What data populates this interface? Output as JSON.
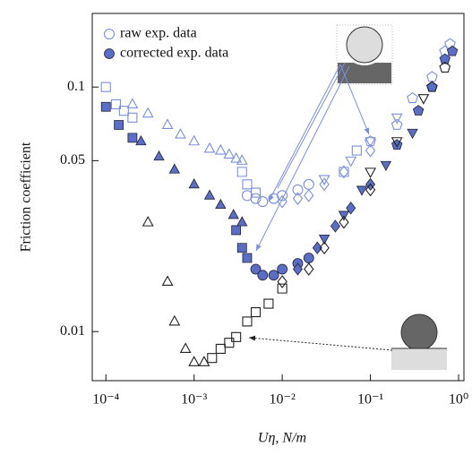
{
  "chart_data": {
    "type": "scatter",
    "x_label": "Uη, N/m",
    "y_label": "Friction coefficient",
    "log_x": true,
    "log_y": true,
    "xlim": [
      7e-05,
      1.15
    ],
    "ylim": [
      0.0063,
      0.2
    ],
    "xticks": [
      {
        "value": 0.0001,
        "label": "10⁻⁴"
      },
      {
        "value": 0.001,
        "label": "10⁻³"
      },
      {
        "value": 0.01,
        "label": "10⁻²"
      },
      {
        "value": 0.1,
        "label": "10⁻¹"
      },
      {
        "value": 1,
        "label": "10⁰"
      }
    ],
    "yticks": [
      0.01,
      0.05,
      0.1
    ],
    "legend": "upper left",
    "series": [
      {
        "name": "raw exp. data",
        "color": "#7b8fdd",
        "filled": false,
        "marker": "circle",
        "x": [
          0.004,
          0.005,
          0.006,
          0.008,
          0.01,
          0.015,
          0.02
        ],
        "values": [
          0.036,
          0.035,
          0.034,
          0.035,
          0.036,
          0.038,
          0.04
        ]
      },
      {
        "name": "corrected exp. data",
        "color": "#5a6ec8",
        "filled": true,
        "marker": "circle",
        "x": [
          0.005,
          0.006,
          0.008,
          0.01,
          0.015,
          0.02
        ],
        "values": [
          0.018,
          0.017,
          0.017,
          0.018,
          0.019,
          0.02
        ]
      },
      {
        "color": "#7b8fdd",
        "filled": false,
        "marker": "square",
        "x": [
          0.0001,
          0.00013,
          0.00016,
          0.0002,
          0.0035,
          0.004,
          0.005,
          0.05,
          0.07
        ],
        "values": [
          0.1,
          0.085,
          0.08,
          0.075,
          0.045,
          0.04,
          0.037,
          0.045,
          0.055
        ]
      },
      {
        "color": "#7b8fdd",
        "filled": false,
        "marker": "triangle",
        "x": [
          0.0002,
          0.0003,
          0.0005,
          0.0007,
          0.001,
          0.0015,
          0.002,
          0.0025,
          0.003,
          0.0035
        ],
        "values": [
          0.085,
          0.078,
          0.07,
          0.064,
          0.06,
          0.056,
          0.055,
          0.053,
          0.051,
          0.05
        ]
      },
      {
        "color": "#7b8fdd",
        "filled": false,
        "marker": "diamond",
        "x": [
          0.01,
          0.015,
          0.02,
          0.03,
          0.05,
          0.1
        ],
        "values": [
          0.034,
          0.035,
          0.036,
          0.04,
          0.045,
          0.055
        ]
      },
      {
        "color": "#7b8fdd",
        "filled": false,
        "marker": "triangle-down",
        "x": [
          0.03,
          0.06,
          0.1,
          0.2
        ],
        "values": [
          0.042,
          0.05,
          0.06,
          0.075
        ]
      },
      {
        "color": "#7b8fdd",
        "filled": false,
        "marker": "pentagon",
        "x": [
          0.1,
          0.2,
          0.3,
          0.5,
          0.7,
          0.8
        ],
        "values": [
          0.06,
          0.07,
          0.09,
          0.11,
          0.14,
          0.15
        ]
      },
      {
        "color": "#5a6ec8",
        "filled": true,
        "marker": "square",
        "x": [
          0.0001,
          0.00014,
          0.0002,
          0.003,
          0.0035,
          0.004
        ],
        "values": [
          0.083,
          0.07,
          0.062,
          0.026,
          0.022,
          0.02
        ]
      },
      {
        "color": "#5a6ec8",
        "filled": true,
        "marker": "triangle",
        "x": [
          0.00025,
          0.0004,
          0.0006,
          0.001,
          0.0015,
          0.002,
          0.0028,
          0.0035
        ],
        "values": [
          0.06,
          0.052,
          0.046,
          0.04,
          0.036,
          0.033,
          0.03,
          0.028
        ]
      },
      {
        "color": "#5a6ec8",
        "filled": true,
        "marker": "diamond",
        "x": [
          0.015,
          0.025,
          0.04,
          0.06,
          0.1
        ],
        "values": [
          0.018,
          0.022,
          0.027,
          0.032,
          0.04
        ]
      },
      {
        "color": "#5a6ec8",
        "filled": true,
        "marker": "triangle-down",
        "x": [
          0.03,
          0.05,
          0.08,
          0.15,
          0.3
        ],
        "values": [
          0.024,
          0.03,
          0.038,
          0.048,
          0.065
        ]
      },
      {
        "color": "#5a6ec8",
        "filled": true,
        "marker": "pentagon",
        "x": [
          0.2,
          0.35,
          0.5,
          0.7,
          0.85
        ],
        "values": [
          0.058,
          0.08,
          0.1,
          0.13,
          0.14
        ]
      },
      {
        "color": "#222222",
        "filled": false,
        "marker": "triangle",
        "x": [
          0.0003,
          0.0005,
          0.0006,
          0.0008,
          0.001,
          0.0013
        ],
        "values": [
          0.028,
          0.016,
          0.011,
          0.0085,
          0.0075,
          0.0075
        ]
      },
      {
        "color": "#222222",
        "filled": false,
        "marker": "square",
        "x": [
          0.0016,
          0.002,
          0.0025,
          0.003,
          0.004,
          0.005,
          0.007,
          0.01
        ],
        "values": [
          0.0078,
          0.0085,
          0.009,
          0.0095,
          0.011,
          0.012,
          0.013,
          0.015
        ]
      },
      {
        "color": "#222222",
        "filled": false,
        "marker": "diamond",
        "x": [
          0.01,
          0.02,
          0.03,
          0.05,
          0.1
        ],
        "values": [
          0.016,
          0.018,
          0.022,
          0.028,
          0.038
        ]
      },
      {
        "color": "#222222",
        "filled": false,
        "marker": "triangle-down",
        "x": [
          0.1,
          0.2,
          0.4
        ],
        "values": [
          0.045,
          0.06,
          0.09
        ]
      },
      {
        "color": "#222222",
        "filled": false,
        "marker": "pentagon",
        "x": [
          0.5,
          0.7
        ],
        "values": [
          0.1,
          0.12
        ]
      }
    ]
  }
}
